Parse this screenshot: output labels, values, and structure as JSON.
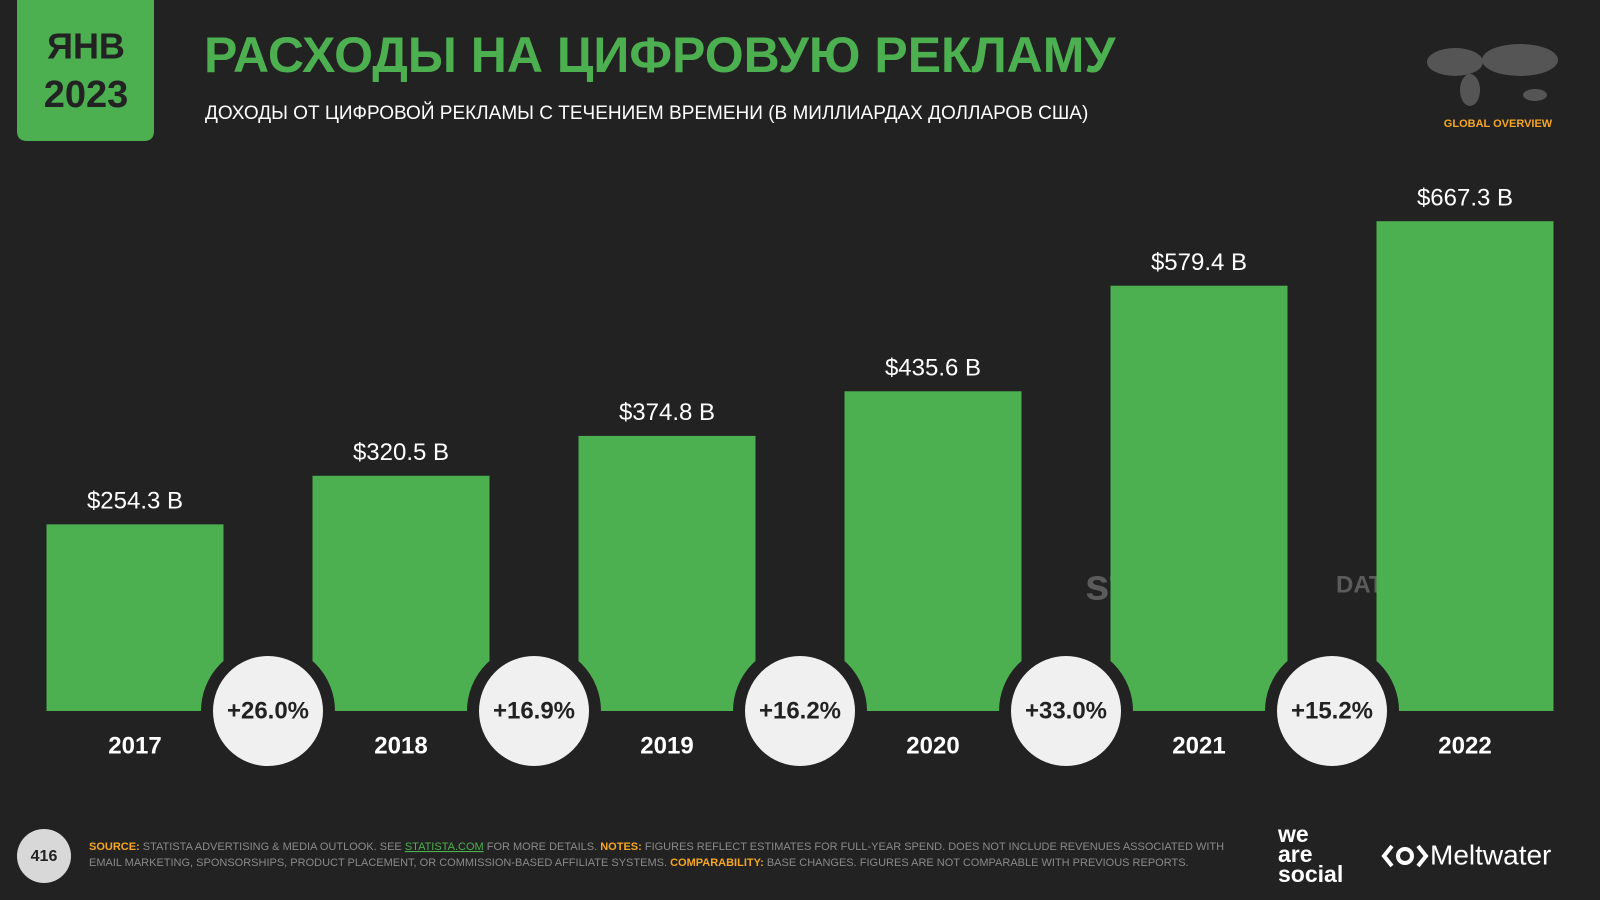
{
  "header": {
    "month": "ЯНВ",
    "year": "2023",
    "badge": "GLOBAL OVERVIEW"
  },
  "chart_data": {
    "type": "bar",
    "title": "РАСХОДЫ НА ЦИФРОВУЮ РЕКЛАМУ",
    "subtitle": "ДОХОДЫ ОТ ЦИФРОВОЙ РЕКЛАМЫ С ТЕЧЕНИЕМ ВРЕМЕНИ (В МИЛЛИАРДАХ ДОЛЛАРОВ США)",
    "categories": [
      "2017",
      "2018",
      "2019",
      "2020",
      "2021",
      "2022"
    ],
    "values": [
      254.3,
      320.5,
      374.8,
      435.6,
      579.4,
      667.3
    ],
    "value_labels": [
      "$254.3 B",
      "$320.5 B",
      "$374.8 B",
      "$435.6 B",
      "$579.4 B",
      "$667.3 B"
    ],
    "growth_labels": [
      "+26.0%",
      "+16.9%",
      "+16.2%",
      "+33.0%",
      "+15.2%"
    ],
    "color": "#4caf50"
  },
  "watermarks": {
    "statista": "statista",
    "datareportal": "DATAREPORTAL"
  },
  "footer": {
    "page": "416",
    "source_label": "SOURCE:",
    "source_text": "STATISTA ADVERTISING & MEDIA OUTLOOK. SEE",
    "source_link": "STATISTA.COM",
    "source_tail": "FOR MORE DETAILS.",
    "notes_label": "NOTES:",
    "notes_text": "FIGURES REFLECT ESTIMATES FOR FULL-YEAR SPEND. DOES NOT INCLUDE REVENUES ASSOCIATED WITH",
    "notes_text2": "EMAIL MARKETING, SPONSORSHIPS, PRODUCT PLACEMENT, OR COMMISSION-BASED AFFILIATE SYSTEMS.",
    "comparability_label": "COMPARABILITY:",
    "comparability_text": "BASE CHANGES. FIGURES ARE NOT COMPARABLE WITH PREVIOUS REPORTS.",
    "logo1_line1": "we",
    "logo1_line2": "are",
    "logo1_line3": "social",
    "logo2": "Meltwater"
  }
}
